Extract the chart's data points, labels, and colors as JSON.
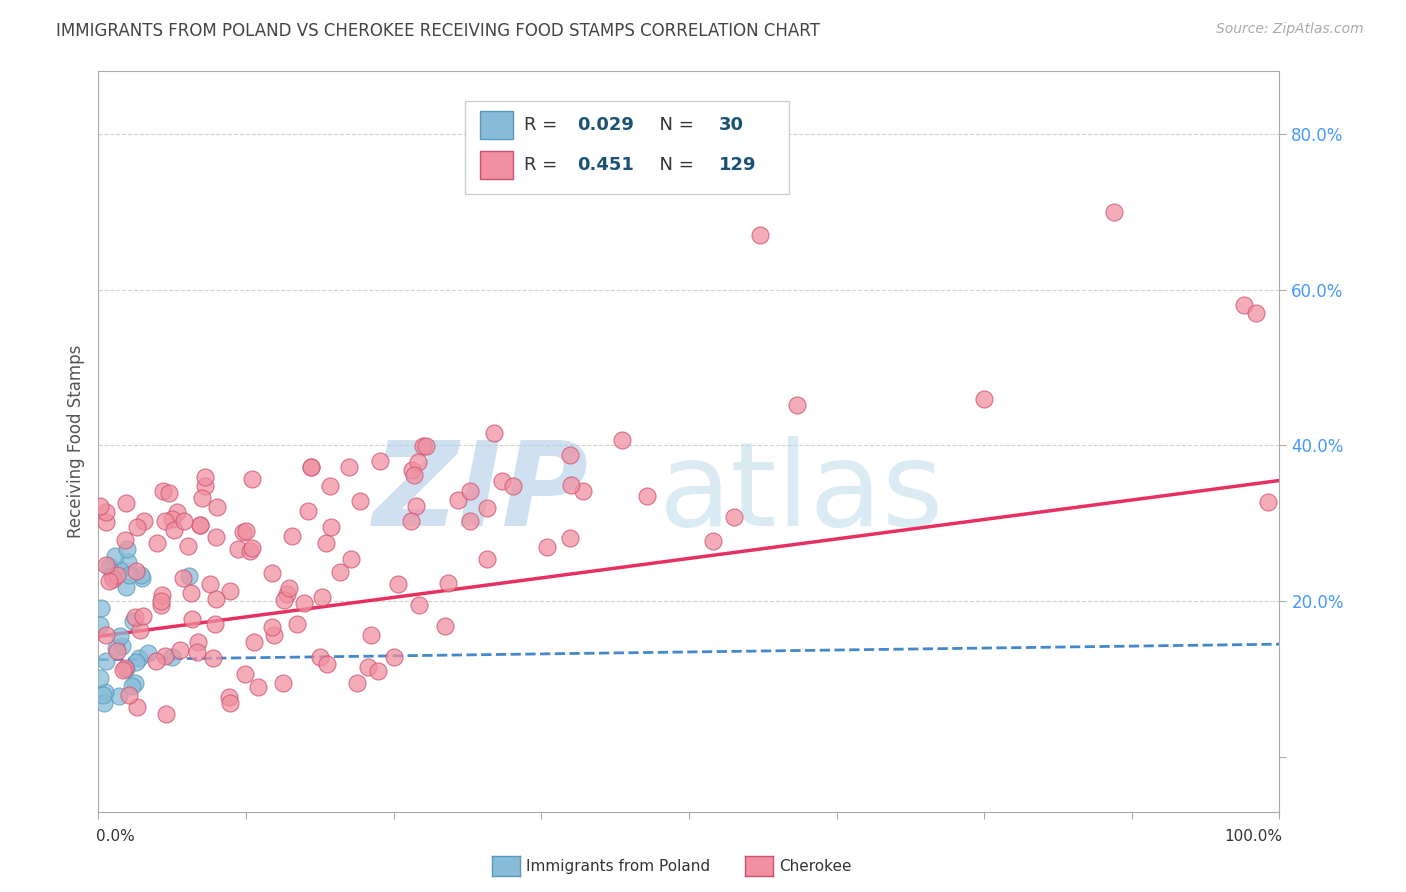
{
  "title": "IMMIGRANTS FROM POLAND VS CHEROKEE RECEIVING FOOD STAMPS CORRELATION CHART",
  "source": "Source: ZipAtlas.com",
  "ylabel": "Receiving Food Stamps",
  "yticks": [
    0.0,
    0.2,
    0.4,
    0.6,
    0.8
  ],
  "ytick_labels": [
    "",
    "20.0%",
    "40.0%",
    "60.0%",
    "80.0%"
  ],
  "xlim": [
    0.0,
    1.0
  ],
  "ylim": [
    -0.07,
    0.88
  ],
  "R_blue": 0.029,
  "N_blue": 30,
  "R_pink": 0.451,
  "N_pink": 129,
  "legend_label1": "Immigrants from Poland",
  "legend_label2": "Cherokee",
  "blue_scatter_color": "#88bbd8",
  "blue_edge_color": "#5599bb",
  "pink_scatter_color": "#f090a0",
  "pink_edge_color": "#cc5070",
  "blue_line_color": "#4488cc",
  "pink_line_color": "#e83060",
  "blue_line_y0": 0.125,
  "blue_line_y1": 0.145,
  "pink_line_y0": 0.155,
  "pink_line_y1": 0.355,
  "watermark_zip_color": "#b0cce8",
  "watermark_atlas_color": "#b8d8e8",
  "title_color": "#444444",
  "source_color": "#aaaaaa",
  "grid_color": "#cccccc",
  "legend_text_color": "#1a5276",
  "ytick_color": "#4499ff",
  "title_fontsize": 12,
  "source_fontsize": 10,
  "legend_fontsize": 13,
  "ytick_fontsize": 12,
  "ylabel_fontsize": 12
}
